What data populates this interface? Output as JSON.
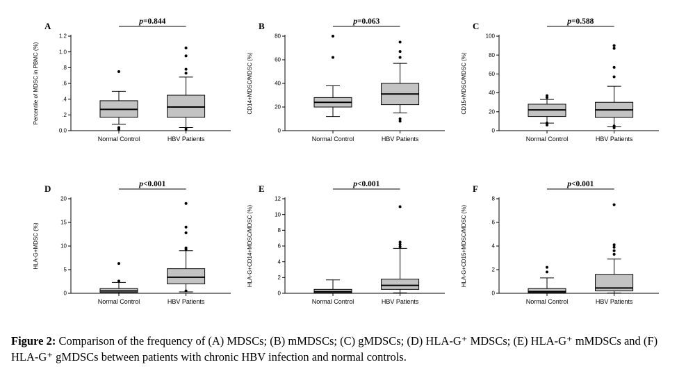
{
  "figure": {
    "caption_label": "Figure 2:",
    "caption_text": " Comparison of the frequency of (A) MDSCs; (B) mMDSCs; (C) gMDSCs; (D) HLA-G⁺ MDSCs; (E) HLA-G⁺ mMDSCs and (F) HLA-G⁺ gMDSCs between patients with chronic HBV infection and normal controls."
  },
  "style": {
    "box_fill": "#c3c3c3",
    "line_color": "#000000",
    "background": "#ffffff"
  },
  "chart_data": [
    {
      "type": "box",
      "panel": "A",
      "p_label": "p=0.844",
      "ylabel": "Percentile of MDSC in PBMC (%)",
      "ylim": [
        0,
        1.2
      ],
      "yticks": [
        0,
        0.2,
        0.4,
        0.6,
        0.8,
        1.0,
        1.2
      ],
      "ytick_labels": [
        "0.0",
        ".2",
        ".4",
        ".6",
        ".8",
        "1.0",
        "1.2"
      ],
      "categories": [
        "Normal Control",
        "HBV Patients"
      ],
      "groups": [
        {
          "name": "Normal Control",
          "whisker_low": 0.08,
          "q1": 0.17,
          "median": 0.27,
          "q3": 0.38,
          "whisker_high": 0.5,
          "outliers": [
            0.75,
            0.04,
            0.02
          ]
        },
        {
          "name": "HBV Patients",
          "whisker_low": 0.04,
          "q1": 0.17,
          "median": 0.3,
          "q3": 0.45,
          "whisker_high": 0.68,
          "outliers": [
            0.73,
            0.78,
            0.95,
            1.05,
            0.02
          ]
        }
      ]
    },
    {
      "type": "box",
      "panel": "B",
      "p_label": "p=0.063",
      "ylabel": "CD14+MDSC/MDSC (%)",
      "ylim": [
        0,
        80
      ],
      "yticks": [
        0,
        20,
        40,
        60,
        80
      ],
      "ytick_labels": [
        "0",
        "20",
        "40",
        "60",
        "80"
      ],
      "categories": [
        "Normal Control",
        "HBV Patients"
      ],
      "groups": [
        {
          "name": "Normal Control",
          "whisker_low": 12,
          "q1": 20,
          "median": 24,
          "q3": 28,
          "whisker_high": 38,
          "outliers": [
            62,
            80
          ]
        },
        {
          "name": "HBV Patients",
          "whisker_low": 15,
          "q1": 22,
          "median": 31,
          "q3": 40,
          "whisker_high": 57,
          "outliers": [
            62,
            67,
            75,
            10,
            8
          ]
        }
      ]
    },
    {
      "type": "box",
      "panel": "C",
      "p_label": "p=0.588",
      "ylabel": "CD15+MDSC/MDSC (%)",
      "ylim": [
        0,
        100
      ],
      "yticks": [
        0,
        20,
        40,
        60,
        80,
        100
      ],
      "ytick_labels": [
        "0",
        "20",
        "40",
        "60",
        "80",
        "100"
      ],
      "categories": [
        "Normal Control",
        "HBV Patients"
      ],
      "groups": [
        {
          "name": "Normal Control",
          "whisker_low": 8,
          "q1": 15,
          "median": 22,
          "q3": 28,
          "whisker_high": 33,
          "outliers": [
            35,
            37,
            8,
            6
          ]
        },
        {
          "name": "HBV Patients",
          "whisker_low": 4,
          "q1": 14,
          "median": 22,
          "q3": 30,
          "whisker_high": 47,
          "outliers": [
            57,
            67,
            87,
            90,
            5,
            3
          ]
        }
      ]
    },
    {
      "type": "box",
      "panel": "D",
      "p_label": "p<0.001",
      "ylabel": "HLA-G+MDSC (%)",
      "ylim": [
        0,
        20
      ],
      "yticks": [
        0,
        5,
        10,
        15,
        20
      ],
      "ytick_labels": [
        "0",
        "5",
        "10",
        "15",
        "20"
      ],
      "categories": [
        "Normal Control",
        "HBV Patients"
      ],
      "groups": [
        {
          "name": "Normal Control",
          "whisker_low": 0,
          "q1": 0.2,
          "median": 0.5,
          "q3": 1.0,
          "whisker_high": 2.3,
          "outliers": [
            2.6,
            6.3
          ]
        },
        {
          "name": "HBV Patients",
          "whisker_low": 0.3,
          "q1": 2.0,
          "median": 3.4,
          "q3": 5.2,
          "whisker_high": 9.0,
          "outliers": [
            9.3,
            9.6,
            12.8,
            14.0,
            19.0,
            0.5
          ]
        }
      ]
    },
    {
      "type": "box",
      "panel": "E",
      "p_label": "p<0.001",
      "ylabel": "HLA-G+CD14+MDSC/MDSC (%)",
      "ylim": [
        0,
        12
      ],
      "yticks": [
        0,
        2,
        4,
        6,
        8,
        10,
        12
      ],
      "ytick_labels": [
        "0",
        "2",
        "4",
        "6",
        "8",
        "10",
        "12"
      ],
      "categories": [
        "Normal Control",
        "HBV Patients"
      ],
      "groups": [
        {
          "name": "Normal Control",
          "whisker_low": 0,
          "q1": 0.05,
          "median": 0.2,
          "q3": 0.5,
          "whisker_high": 1.7,
          "outliers": []
        },
        {
          "name": "HBV Patients",
          "whisker_low": 0.05,
          "q1": 0.5,
          "median": 1.0,
          "q3": 1.8,
          "whisker_high": 5.7,
          "outliers": [
            5.9,
            6.2,
            6.5,
            11.0
          ]
        }
      ]
    },
    {
      "type": "box",
      "panel": "F",
      "p_label": "p<0.001",
      "ylabel": "HLA-G+CD15+MDSC/MDSC (%)",
      "ylim": [
        0,
        8
      ],
      "yticks": [
        0,
        2,
        4,
        6,
        8
      ],
      "ytick_labels": [
        "0",
        "2",
        "4",
        "6",
        "8"
      ],
      "categories": [
        "Normal Control",
        "HBV Patients"
      ],
      "groups": [
        {
          "name": "Normal Control",
          "whisker_low": 0,
          "q1": 0.05,
          "median": 0.15,
          "q3": 0.4,
          "whisker_high": 1.3,
          "outliers": [
            1.8,
            2.2
          ]
        },
        {
          "name": "HBV Patients",
          "whisker_low": 0.02,
          "q1": 0.2,
          "median": 0.45,
          "q3": 1.6,
          "whisker_high": 2.9,
          "outliers": [
            3.3,
            3.6,
            3.9,
            4.1,
            7.5
          ]
        }
      ]
    }
  ]
}
